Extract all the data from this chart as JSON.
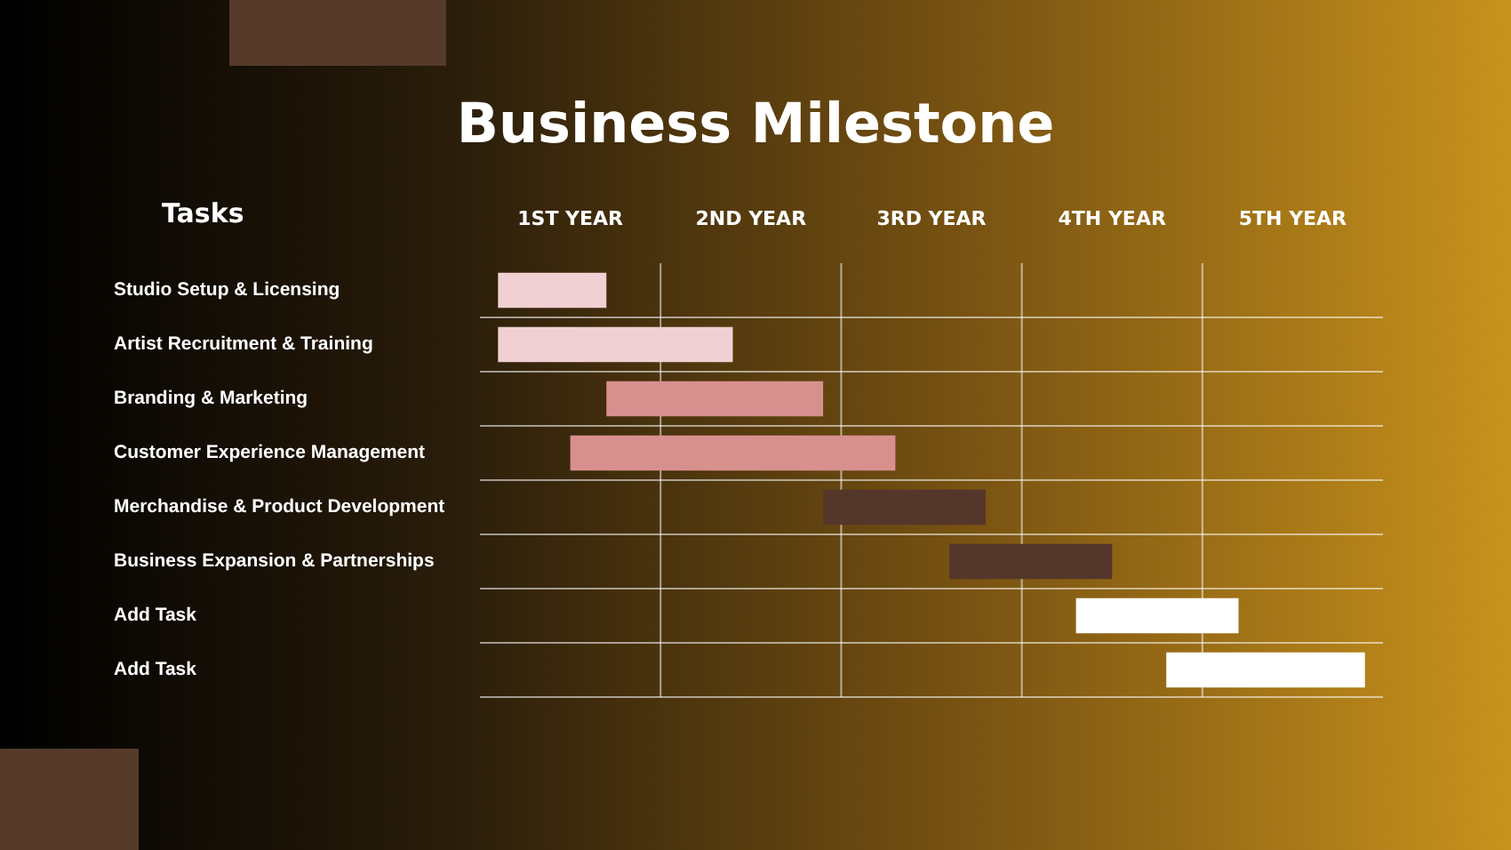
{
  "chart_data": {
    "type": "bar",
    "orientation": "horizontal",
    "title": "Business Milestone",
    "ylabel": "Tasks",
    "categories": [
      "Studio Setup & Licensing",
      "Artist Recruitment & Training",
      "Branding & Marketing",
      "Customer Experience Management",
      "Merchandise & Product Development",
      "Business Expansion & Partnerships",
      "Add Task",
      "Add Task"
    ],
    "base": [
      0.1,
      0.1,
      0.7,
      0.5,
      1.9,
      2.6,
      3.3,
      3.8
    ],
    "values": [
      0.6,
      1.3,
      1.2,
      1.8,
      0.9,
      0.9,
      0.9,
      1.1
    ],
    "colors": [
      "#f0d0d2",
      "#f0d0d2",
      "#d8908f",
      "#d8908f",
      "#55362a",
      "#55362a",
      "#ffffff",
      "#ffffff"
    ],
    "xlim": [
      0,
      5
    ],
    "xticks": [
      {
        "value": 0.5,
        "label": "1ST YEAR"
      },
      {
        "value": 1.5,
        "label": "2ND YEAR"
      },
      {
        "value": 2.5,
        "label": "3RD YEAR"
      },
      {
        "value": 3.5,
        "label": "4TH YEAR"
      },
      {
        "value": 4.5,
        "label": "5TH YEAR"
      }
    ],
    "ref_lines": [
      {
        "axis": "x",
        "value": 1
      },
      {
        "axis": "x",
        "value": 2
      },
      {
        "axis": "x",
        "value": 3
      },
      {
        "axis": "x",
        "value": 4
      }
    ],
    "grid": "y",
    "legend": false
  }
}
